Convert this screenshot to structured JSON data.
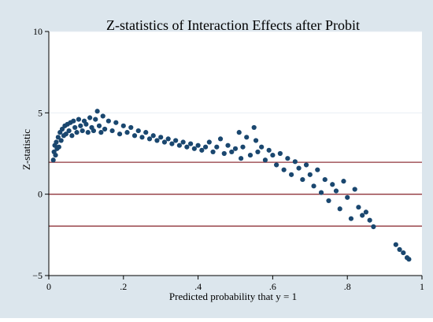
{
  "chart_data": {
    "type": "scatter",
    "title": "Z-statistics of Interaction Effects after Probit",
    "xlabel": "Predicted probability that y = 1",
    "ylabel": "Z-statistic",
    "xlim": [
      0,
      1
    ],
    "ylim": [
      -5,
      10
    ],
    "x_ticks": [
      {
        "value": 0,
        "label": "0"
      },
      {
        "value": 0.2,
        "label": ".2"
      },
      {
        "value": 0.4,
        "label": ".4"
      },
      {
        "value": 0.6,
        "label": ".6"
      },
      {
        "value": 0.8,
        "label": ".8"
      },
      {
        "value": 1,
        "label": "1"
      }
    ],
    "y_ticks": [
      {
        "value": -5,
        "label": "−5"
      },
      {
        "value": 0,
        "label": "0"
      },
      {
        "value": 5,
        "label": "5"
      },
      {
        "value": 10,
        "label": "10"
      }
    ],
    "reference_lines": [
      1.96,
      0,
      -1.96
    ],
    "grid": "horizontal",
    "background_color": "#dce6ed",
    "plot_background_color": "#ffffff",
    "point_color": "#1a476f",
    "reference_line_color": "#90353b",
    "series": [
      {
        "values": [
          [
            0.012,
            2.1
          ],
          [
            0.014,
            2.6
          ],
          [
            0.016,
            3.0
          ],
          [
            0.018,
            2.4
          ],
          [
            0.02,
            3.2
          ],
          [
            0.022,
            2.8
          ],
          [
            0.025,
            3.5
          ],
          [
            0.027,
            2.9
          ],
          [
            0.03,
            3.8
          ],
          [
            0.033,
            3.3
          ],
          [
            0.036,
            4.0
          ],
          [
            0.04,
            3.6
          ],
          [
            0.043,
            4.2
          ],
          [
            0.046,
            3.7
          ],
          [
            0.05,
            4.3
          ],
          [
            0.054,
            3.9
          ],
          [
            0.058,
            4.4
          ],
          [
            0.062,
            3.6
          ],
          [
            0.066,
            4.5
          ],
          [
            0.07,
            4.1
          ],
          [
            0.075,
            3.8
          ],
          [
            0.08,
            4.6
          ],
          [
            0.085,
            4.2
          ],
          [
            0.09,
            3.9
          ],
          [
            0.095,
            4.5
          ],
          [
            0.1,
            4.3
          ],
          [
            0.105,
            3.8
          ],
          [
            0.11,
            4.7
          ],
          [
            0.115,
            4.1
          ],
          [
            0.12,
            3.9
          ],
          [
            0.125,
            4.6
          ],
          [
            0.13,
            5.1
          ],
          [
            0.135,
            4.2
          ],
          [
            0.14,
            3.8
          ],
          [
            0.145,
            4.8
          ],
          [
            0.15,
            4.0
          ],
          [
            0.16,
            4.5
          ],
          [
            0.17,
            3.9
          ],
          [
            0.18,
            4.4
          ],
          [
            0.19,
            3.7
          ],
          [
            0.2,
            4.2
          ],
          [
            0.21,
            3.8
          ],
          [
            0.22,
            4.1
          ],
          [
            0.23,
            3.6
          ],
          [
            0.24,
            3.9
          ],
          [
            0.25,
            3.5
          ],
          [
            0.26,
            3.8
          ],
          [
            0.27,
            3.4
          ],
          [
            0.28,
            3.6
          ],
          [
            0.29,
            3.3
          ],
          [
            0.3,
            3.5
          ],
          [
            0.31,
            3.2
          ],
          [
            0.32,
            3.4
          ],
          [
            0.33,
            3.1
          ],
          [
            0.34,
            3.3
          ],
          [
            0.35,
            3.0
          ],
          [
            0.36,
            3.2
          ],
          [
            0.37,
            2.9
          ],
          [
            0.38,
            3.1
          ],
          [
            0.39,
            2.8
          ],
          [
            0.4,
            3.0
          ],
          [
            0.41,
            2.7
          ],
          [
            0.42,
            2.9
          ],
          [
            0.43,
            3.2
          ],
          [
            0.44,
            2.6
          ],
          [
            0.45,
            2.9
          ],
          [
            0.46,
            3.4
          ],
          [
            0.47,
            2.5
          ],
          [
            0.48,
            3.0
          ],
          [
            0.49,
            2.6
          ],
          [
            0.5,
            2.8
          ],
          [
            0.51,
            3.8
          ],
          [
            0.515,
            2.2
          ],
          [
            0.52,
            2.9
          ],
          [
            0.53,
            3.5
          ],
          [
            0.54,
            2.4
          ],
          [
            0.55,
            4.1
          ],
          [
            0.555,
            3.3
          ],
          [
            0.56,
            2.6
          ],
          [
            0.57,
            2.9
          ],
          [
            0.58,
            2.1
          ],
          [
            0.59,
            2.7
          ],
          [
            0.6,
            2.4
          ],
          [
            0.61,
            1.8
          ],
          [
            0.62,
            2.5
          ],
          [
            0.63,
            1.5
          ],
          [
            0.64,
            2.2
          ],
          [
            0.65,
            1.2
          ],
          [
            0.66,
            2.0
          ],
          [
            0.67,
            1.6
          ],
          [
            0.68,
            0.9
          ],
          [
            0.69,
            1.8
          ],
          [
            0.7,
            1.2
          ],
          [
            0.71,
            0.5
          ],
          [
            0.72,
            1.5
          ],
          [
            0.73,
            0.1
          ],
          [
            0.74,
            0.9
          ],
          [
            0.75,
            -0.4
          ],
          [
            0.76,
            0.6
          ],
          [
            0.77,
            0.2
          ],
          [
            0.78,
            -0.9
          ],
          [
            0.79,
            0.8
          ],
          [
            0.8,
            -0.2
          ],
          [
            0.81,
            -1.5
          ],
          [
            0.82,
            0.3
          ],
          [
            0.83,
            -0.8
          ],
          [
            0.84,
            -1.3
          ],
          [
            0.85,
            -1.1
          ],
          [
            0.86,
            -1.6
          ],
          [
            0.87,
            -2.0
          ],
          [
            0.93,
            -3.1
          ],
          [
            0.94,
            -3.4
          ],
          [
            0.95,
            -3.6
          ],
          [
            0.96,
            -3.9
          ],
          [
            0.965,
            -4.0
          ]
        ]
      }
    ]
  }
}
